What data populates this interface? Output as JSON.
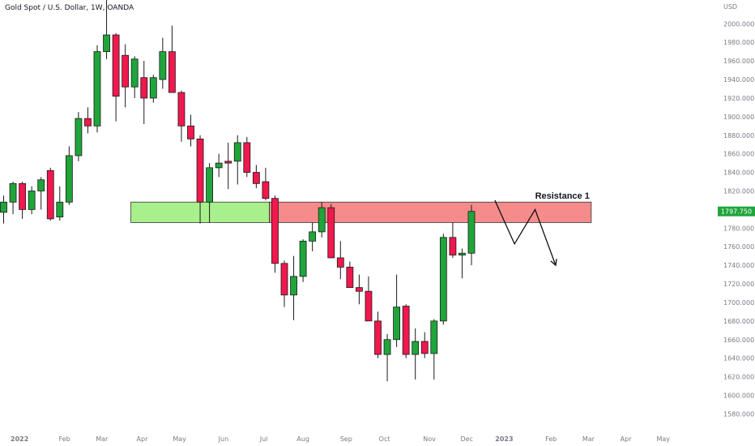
{
  "header": {
    "title": "Gold Spot / U.S. Dollar, 1W, OANDA"
  },
  "price_axis": {
    "currency": "USD",
    "current_price": "1797.750"
  },
  "colors": {
    "up": "#1fa53a",
    "down": "#f0184d",
    "support_zone": "#a8f08c",
    "resistance_zone": "#f58b8b",
    "price_tag": "#1fa53a"
  },
  "chart_data": {
    "type": "candlestick",
    "title": "Gold Spot / U.S. Dollar, 1W, OANDA",
    "ylim": [
      1570,
      2010
    ],
    "y_ticks": [
      1580,
      1600,
      1620,
      1640,
      1660,
      1680,
      1700,
      1720,
      1740,
      1760,
      1780,
      1800,
      1820,
      1840,
      1860,
      1880,
      1900,
      1920,
      1940,
      1960,
      1980,
      2000
    ],
    "x_labels": [
      {
        "label": "2022",
        "i": 1.7
      },
      {
        "label": "Feb",
        "i": 6.5
      },
      {
        "label": "Mar",
        "i": 10.5
      },
      {
        "label": "Apr",
        "i": 14.8
      },
      {
        "label": "May",
        "i": 18.8
      },
      {
        "label": "Jun",
        "i": 23.5
      },
      {
        "label": "Jul",
        "i": 27.8
      },
      {
        "label": "Aug",
        "i": 32.0
      },
      {
        "label": "Sep",
        "i": 36.6
      },
      {
        "label": "Oct",
        "i": 40.7
      },
      {
        "label": "Nov",
        "i": 45.5
      },
      {
        "label": "Dec",
        "i": 49.5
      },
      {
        "label": "2023",
        "i": 53.5
      },
      {
        "label": "Feb",
        "i": 58.5
      },
      {
        "label": "Mar",
        "i": 62.5
      },
      {
        "label": "Apr",
        "i": 66.5
      },
      {
        "label": "May",
        "i": 70.5
      }
    ],
    "candles": [
      {
        "o": 1797,
        "h": 1815,
        "l": 1785,
        "c": 1808
      },
      {
        "o": 1808,
        "h": 1830,
        "l": 1795,
        "c": 1828
      },
      {
        "o": 1828,
        "h": 1830,
        "l": 1790,
        "c": 1800
      },
      {
        "o": 1800,
        "h": 1825,
        "l": 1795,
        "c": 1820
      },
      {
        "o": 1820,
        "h": 1835,
        "l": 1800,
        "c": 1832
      },
      {
        "o": 1842,
        "h": 1845,
        "l": 1788,
        "c": 1790
      },
      {
        "o": 1792,
        "h": 1825,
        "l": 1788,
        "c": 1808
      },
      {
        "o": 1808,
        "h": 1868,
        "l": 1805,
        "c": 1858
      },
      {
        "o": 1858,
        "h": 1905,
        "l": 1852,
        "c": 1898
      },
      {
        "o": 1898,
        "h": 1910,
        "l": 1882,
        "c": 1890
      },
      {
        "o": 1890,
        "h": 1977,
        "l": 1883,
        "c": 1970
      },
      {
        "o": 1970,
        "h": 2070,
        "l": 1962,
        "c": 1988
      },
      {
        "o": 1988,
        "h": 1990,
        "l": 1895,
        "c": 1922
      },
      {
        "o": 1966,
        "h": 1978,
        "l": 1910,
        "c": 1932
      },
      {
        "o": 1932,
        "h": 1965,
        "l": 1920,
        "c": 1962
      },
      {
        "o": 1942,
        "h": 1960,
        "l": 1892,
        "c": 1920
      },
      {
        "o": 1920,
        "h": 1945,
        "l": 1915,
        "c": 1942
      },
      {
        "o": 1940,
        "h": 1985,
        "l": 1930,
        "c": 1970
      },
      {
        "o": 1970,
        "h": 1998,
        "l": 1930,
        "c": 1926
      },
      {
        "o": 1926,
        "h": 1928,
        "l": 1873,
        "c": 1890
      },
      {
        "o": 1890,
        "h": 1902,
        "l": 1868,
        "c": 1876
      },
      {
        "o": 1876,
        "h": 1880,
        "l": 1785,
        "c": 1808
      },
      {
        "o": 1808,
        "h": 1850,
        "l": 1786,
        "c": 1845
      },
      {
        "o": 1845,
        "h": 1860,
        "l": 1835,
        "c": 1850
      },
      {
        "o": 1852,
        "h": 1872,
        "l": 1822,
        "c": 1850
      },
      {
        "o": 1852,
        "h": 1880,
        "l": 1827,
        "c": 1872
      },
      {
        "o": 1872,
        "h": 1878,
        "l": 1835,
        "c": 1840
      },
      {
        "o": 1840,
        "h": 1848,
        "l": 1823,
        "c": 1828
      },
      {
        "o": 1830,
        "h": 1845,
        "l": 1810,
        "c": 1812
      },
      {
        "o": 1812,
        "h": 1815,
        "l": 1732,
        "c": 1742
      },
      {
        "o": 1742,
        "h": 1745,
        "l": 1695,
        "c": 1708
      },
      {
        "o": 1708,
        "h": 1750,
        "l": 1681,
        "c": 1728
      },
      {
        "o": 1728,
        "h": 1768,
        "l": 1722,
        "c": 1766
      },
      {
        "o": 1766,
        "h": 1786,
        "l": 1755,
        "c": 1776
      },
      {
        "o": 1776,
        "h": 1808,
        "l": 1770,
        "c": 1802
      },
      {
        "o": 1802,
        "h": 1806,
        "l": 1748,
        "c": 1748
      },
      {
        "o": 1748,
        "h": 1766,
        "l": 1725,
        "c": 1738
      },
      {
        "o": 1738,
        "h": 1744,
        "l": 1718,
        "c": 1716
      },
      {
        "o": 1716,
        "h": 1730,
        "l": 1698,
        "c": 1712
      },
      {
        "o": 1712,
        "h": 1728,
        "l": 1680,
        "c": 1680
      },
      {
        "o": 1680,
        "h": 1690,
        "l": 1640,
        "c": 1644
      },
      {
        "o": 1644,
        "h": 1666,
        "l": 1615,
        "c": 1660
      },
      {
        "o": 1660,
        "h": 1730,
        "l": 1652,
        "c": 1695
      },
      {
        "o": 1696,
        "h": 1698,
        "l": 1640,
        "c": 1644
      },
      {
        "o": 1644,
        "h": 1672,
        "l": 1617,
        "c": 1658
      },
      {
        "o": 1658,
        "h": 1668,
        "l": 1640,
        "c": 1645
      },
      {
        "o": 1645,
        "h": 1682,
        "l": 1617,
        "c": 1680
      },
      {
        "o": 1680,
        "h": 1774,
        "l": 1676,
        "c": 1770
      },
      {
        "o": 1770,
        "h": 1786,
        "l": 1748,
        "c": 1751
      },
      {
        "o": 1751,
        "h": 1758,
        "l": 1726,
        "c": 1753
      },
      {
        "o": 1753,
        "h": 1805,
        "l": 1740,
        "c": 1798
      }
    ],
    "zones": [
      {
        "name": "support-zone",
        "i_start": 13.6,
        "i_end": 28.4,
        "y_low": 1786,
        "y_high": 1808,
        "color": "#a8f08c"
      },
      {
        "name": "resistance-zone",
        "i_start": 28.4,
        "i_end": 62.8,
        "y_low": 1786,
        "y_high": 1808,
        "color": "#f58b8b",
        "label": "Resistance 1"
      }
    ],
    "projection": [
      {
        "i": 52.5,
        "y": 1810
      },
      {
        "i": 54.6,
        "y": 1763
      },
      {
        "i": 56.8,
        "y": 1800
      },
      {
        "i": 59.0,
        "y": 1740
      }
    ]
  }
}
